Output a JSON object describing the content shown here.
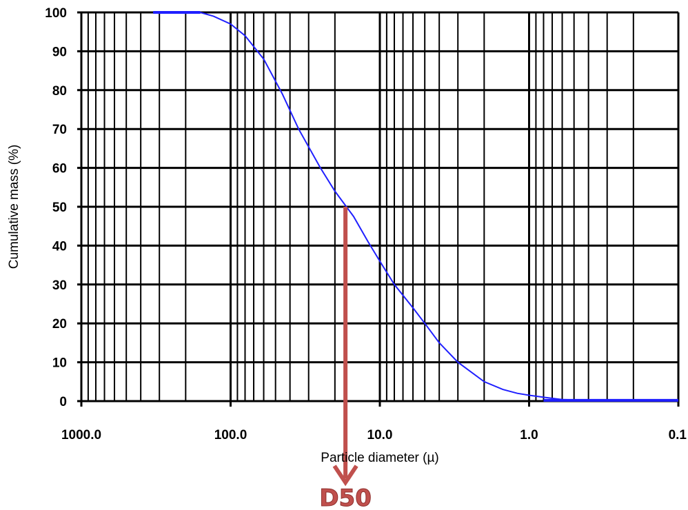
{
  "chart_data": {
    "type": "line",
    "title": "",
    "xlabel": "Particle diameter (µ)",
    "ylabel": "Cumulative mass (%)",
    "x_scale": "log",
    "x_reversed": true,
    "xlim": [
      1000,
      0.1
    ],
    "ylim": [
      0,
      100
    ],
    "x_ticks": [
      1000,
      100,
      10,
      1,
      0.1
    ],
    "x_tick_labels": [
      "1000.0",
      "100.0",
      "10.0",
      "1.0",
      "0.1"
    ],
    "y_ticks": [
      0,
      10,
      20,
      30,
      40,
      50,
      60,
      70,
      80,
      90,
      100
    ],
    "y_tick_labels": [
      "0",
      "10",
      "20",
      "30",
      "40",
      "50",
      "60",
      "70",
      "80",
      "90",
      "100"
    ],
    "grid": true,
    "series": [
      {
        "color": "#1f1fff",
        "x": [
          330,
          160,
          130,
          100,
          80,
          60,
          45,
          35,
          25,
          20,
          15,
          12,
          10,
          8,
          6,
          5,
          4,
          3,
          2,
          1.5,
          1.2,
          1.0,
          0.8,
          0.6,
          0.4,
          0.2,
          0.1
        ],
        "y": [
          100,
          100,
          99,
          97,
          94,
          88,
          79,
          70,
          60,
          54,
          47.5,
          41,
          36,
          30,
          24,
          20,
          15,
          10,
          5,
          3,
          2,
          1.5,
          1,
          0.4,
          0.2,
          0.2,
          0.2
        ]
      }
    ],
    "annotations": [
      {
        "text": "D50",
        "color": "#c0504d",
        "x_value": 17,
        "y_value": 50
      }
    ]
  }
}
